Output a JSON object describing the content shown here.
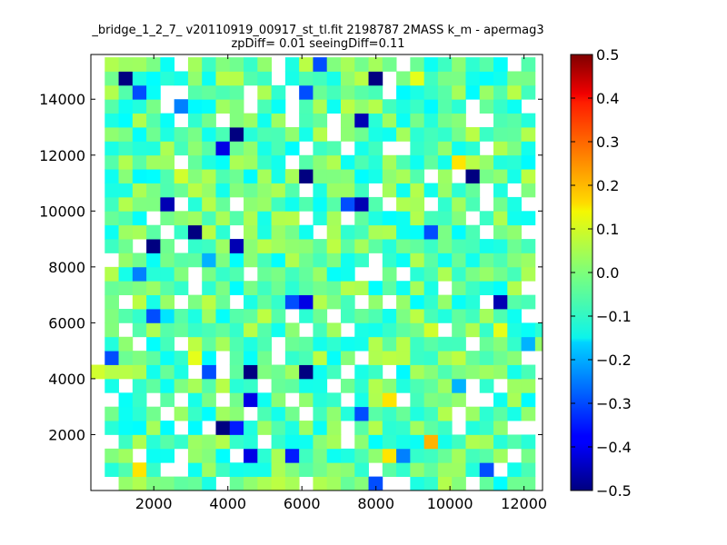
{
  "chart_data": {
    "type": "heatmap",
    "title_line1": "_bridge_1_2_7_ v20110919_00917_st_tl.fit 2198787 2MASS k_m - apermag3",
    "title_line2": "zpDiff= 0.01 seeingDiff=0.11",
    "xlabel": "",
    "ylabel": "",
    "xlim": [
      300,
      12500
    ],
    "ylim": [
      0,
      15600
    ],
    "x_ticks": [
      2000,
      4000,
      6000,
      8000,
      10000,
      12000
    ],
    "y_ticks": [
      2000,
      4000,
      6000,
      8000,
      10000,
      12000,
      14000
    ],
    "x_tick_labels": [
      "2000",
      "4000",
      "6000",
      "8000",
      "10000",
      "12000"
    ],
    "y_tick_labels": [
      "2000",
      "4000",
      "6000",
      "8000",
      "10000",
      "12000",
      "14000"
    ],
    "colorbar": {
      "colormap": "jet",
      "vmin": -0.5,
      "vmax": 0.5,
      "ticks": [
        -0.5,
        -0.4,
        -0.3,
        -0.2,
        -0.1,
        0.0,
        0.1,
        0.2,
        0.3,
        0.4,
        0.5
      ],
      "tick_labels": [
        "−0.5",
        "−0.4",
        "−0.3",
        "−0.2",
        "−0.1",
        "0.0",
        "0.1",
        "0.2",
        "0.3",
        "0.4",
        "0.5"
      ]
    },
    "grid": {
      "x0": 300,
      "dx": 375,
      "nx": 33,
      "y0": 0,
      "dy": 500,
      "ny": 31
    },
    "cells": [
      {
        "x": 1050,
        "y": 14750,
        "v": -0.5
      },
      {
        "x": 7800,
        "y": 14750,
        "v": -0.5
      },
      {
        "x": 1425,
        "y": 14250,
        "v": -0.3
      },
      {
        "x": 5925,
        "y": 14250,
        "v": -0.3
      },
      {
        "x": 2550,
        "y": 13750,
        "v": -0.25
      },
      {
        "x": 7425,
        "y": 13250,
        "v": -0.45
      },
      {
        "x": 4300,
        "y": 12750,
        "v": -0.5
      },
      {
        "x": 3925,
        "y": 12250,
        "v": -0.4
      },
      {
        "x": 6300,
        "y": 15250,
        "v": -0.3
      },
      {
        "x": 10050,
        "y": 11750,
        "v": 0.15
      },
      {
        "x": 5925,
        "y": 11250,
        "v": -0.5
      },
      {
        "x": 10425,
        "y": 11250,
        "v": -0.5
      },
      {
        "x": 2550,
        "y": 11250,
        "v": 0.08
      },
      {
        "x": 2175,
        "y": 10250,
        "v": -0.45
      },
      {
        "x": 7050,
        "y": 10250,
        "v": -0.3
      },
      {
        "x": 7425,
        "y": 10250,
        "v": -0.45
      },
      {
        "x": 2925,
        "y": 9250,
        "v": -0.5
      },
      {
        "x": 9300,
        "y": 9250,
        "v": -0.3
      },
      {
        "x": 1800,
        "y": 8750,
        "v": -0.5
      },
      {
        "x": 4300,
        "y": 8750,
        "v": -0.45
      },
      {
        "x": 1425,
        "y": 7750,
        "v": -0.25
      },
      {
        "x": 3300,
        "y": 8250,
        "v": -0.2
      },
      {
        "x": 5550,
        "y": 6750,
        "v": -0.3
      },
      {
        "x": 5925,
        "y": 6750,
        "v": -0.4
      },
      {
        "x": 11175,
        "y": 6750,
        "v": -0.45
      },
      {
        "x": 1800,
        "y": 6250,
        "v": -0.3
      },
      {
        "x": 2175,
        "y": 6250,
        "v": -0.15
      },
      {
        "x": 9300,
        "y": 5750,
        "v": 0.08
      },
      {
        "x": 11175,
        "y": 5750,
        "v": 0.1
      },
      {
        "x": 675,
        "y": 4750,
        "v": -0.3
      },
      {
        "x": 2925,
        "y": 4750,
        "v": 0.1
      },
      {
        "x": 4675,
        "y": 4250,
        "v": -0.5
      },
      {
        "x": 5925,
        "y": 4250,
        "v": -0.5
      },
      {
        "x": 3300,
        "y": 4250,
        "v": -0.3
      },
      {
        "x": 4675,
        "y": 3250,
        "v": -0.4
      },
      {
        "x": 7425,
        "y": 2750,
        "v": -0.3
      },
      {
        "x": 8175,
        "y": 3250,
        "v": 0.15
      },
      {
        "x": 10050,
        "y": 3750,
        "v": -0.2
      },
      {
        "x": 3925,
        "y": 2250,
        "v": -0.5
      },
      {
        "x": 4300,
        "y": 2250,
        "v": -0.35
      },
      {
        "x": 9300,
        "y": 1750,
        "v": 0.2
      },
      {
        "x": 4675,
        "y": 1250,
        "v": -0.4
      },
      {
        "x": 5550,
        "y": 1250,
        "v": -0.35
      },
      {
        "x": 8175,
        "y": 1250,
        "v": 0.15
      },
      {
        "x": 8550,
        "y": 1250,
        "v": -0.25
      },
      {
        "x": 7800,
        "y": 250,
        "v": -0.3
      },
      {
        "x": 10800,
        "y": 750,
        "v": -0.3
      },
      {
        "x": 1425,
        "y": 750,
        "v": 0.15
      },
      {
        "x": 8925,
        "y": 14750,
        "v": 0.1
      },
      {
        "x": 11925,
        "y": 5250,
        "v": -0.2
      }
    ]
  }
}
